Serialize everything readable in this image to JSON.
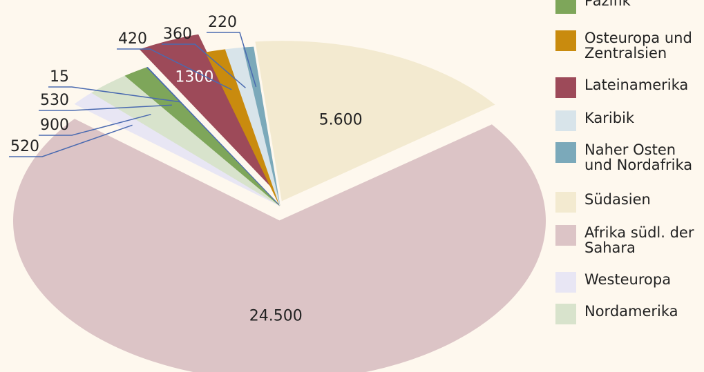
{
  "chart_data": {
    "type": "pie",
    "categories": [
      "Pazifik",
      "Osteuropa und\nZentralsien",
      "Lateinamerika",
      "Karibik",
      "Naher Osten\nund Nordafrika",
      "Südasien",
      "Afrika südl. der\nSahara",
      "Westeuropa",
      "Nordamerika",
      null
    ],
    "values": [
      530,
      420,
      1300,
      360,
      220,
      5600,
      24500,
      520,
      900,
      15
    ],
    "value_labels": [
      "530",
      "420",
      "1300",
      "360",
      "220",
      "5.600",
      "24.500",
      "520",
      "900",
      "15"
    ],
    "colors": [
      "#7ea65a",
      "#c98b0e",
      "#9d4a59",
      "#d8e4ea",
      "#7ba9ba",
      "#f3ead0",
      "#dcc4c6",
      "#e8e6f4",
      "#d8e3cc",
      "#4a6ab0"
    ],
    "legend": "right"
  }
}
